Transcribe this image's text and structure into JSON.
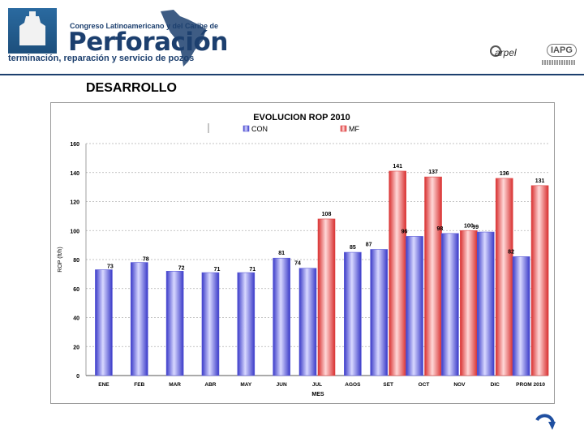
{
  "header": {
    "congress_line": "Congreso Latinoamericano y del Caribe de",
    "title": "Perforación",
    "subtitle": "terminación, reparación y servicio de pozos",
    "org1": "arpel",
    "org2": "IAPG"
  },
  "section_title": "DESARROLLO",
  "chart_data": {
    "type": "bar",
    "title": "EVOLUCION ROP 2010",
    "xlabel": "MES",
    "ylabel": "ROP (ft/h)",
    "ylim": [
      0,
      160
    ],
    "yticks": [
      0,
      20,
      40,
      60,
      80,
      100,
      120,
      140,
      160
    ],
    "grid": true,
    "legend_position": "top",
    "categories": [
      "ENE",
      "FEB",
      "MAR",
      "ABR",
      "MAY",
      "JUN",
      "JUL",
      "AGOS",
      "SET",
      "OCT",
      "NOV",
      "DIC",
      "PROM 2010"
    ],
    "series": [
      {
        "name": "CON",
        "color": "#5a5ad8",
        "values": [
          73,
          78,
          72,
          71,
          71,
          81,
          74,
          85,
          87,
          96,
          98,
          99,
          82
        ]
      },
      {
        "name": "MF",
        "color": "#e04545",
        "values": [
          null,
          null,
          null,
          null,
          null,
          null,
          108,
          null,
          141,
          137,
          100,
          136,
          131
        ]
      }
    ]
  }
}
